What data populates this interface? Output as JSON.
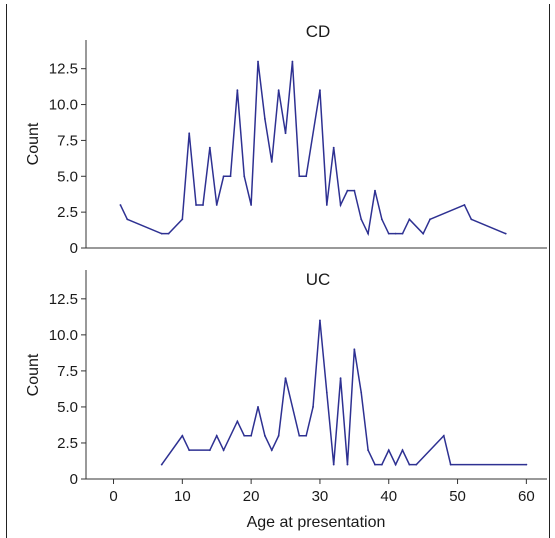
{
  "chart_data": [
    {
      "type": "line",
      "title": "CD",
      "xlabel": "",
      "ylabel": "Count",
      "ylim": [
        0,
        14.5
      ],
      "yticks": [
        "0",
        "2.5",
        "5.0",
        "7.5",
        "10.0",
        "12.5"
      ],
      "color": "#2e3192",
      "series": [
        {
          "x": [
            1,
            2,
            7,
            8,
            10,
            11,
            12,
            13,
            14,
            15,
            16,
            17,
            18,
            19,
            20,
            21,
            22,
            23,
            24,
            25,
            26,
            27,
            28,
            30,
            31,
            32,
            33,
            34,
            35,
            36,
            37,
            38,
            39,
            40,
            41,
            42,
            43,
            45,
            46,
            51,
            52,
            57
          ],
          "values": [
            3,
            2,
            1,
            1,
            2,
            8,
            3,
            3,
            7,
            3,
            5,
            5,
            11,
            5,
            3,
            13,
            9,
            6,
            11,
            8,
            13,
            5,
            5,
            11,
            3,
            7,
            3,
            4,
            4,
            2,
            1,
            4,
            2,
            1,
            1,
            1,
            2,
            1,
            2,
            3,
            2,
            1
          ]
        }
      ]
    },
    {
      "type": "line",
      "title": "UC",
      "xlabel": "Age at presentation",
      "ylabel": "Count",
      "ylim": [
        0,
        14.5
      ],
      "xlim": [
        -4,
        63
      ],
      "xticks": [
        "0",
        "10",
        "20",
        "30",
        "40",
        "50",
        "60"
      ],
      "yticks": [
        "0",
        "2.5",
        "5.0",
        "7.5",
        "10.0",
        "12.5"
      ],
      "color": "#2e3192",
      "series": [
        {
          "x": [
            7,
            10,
            11,
            14,
            15,
            16,
            18,
            19,
            20,
            21,
            22,
            23,
            24,
            25,
            27,
            28,
            29,
            30,
            31,
            32,
            33,
            34,
            35,
            36,
            37,
            38,
            39,
            40,
            41,
            42,
            43,
            44,
            48,
            49,
            60
          ],
          "values": [
            1,
            3,
            2,
            2,
            3,
            2,
            4,
            3,
            3,
            5,
            3,
            2,
            3,
            7,
            3,
            3,
            5,
            11,
            6,
            1,
            7,
            1,
            9,
            6,
            2,
            1,
            1,
            2,
            1,
            2,
            1,
            1,
            3,
            1,
            1
          ]
        }
      ]
    }
  ]
}
